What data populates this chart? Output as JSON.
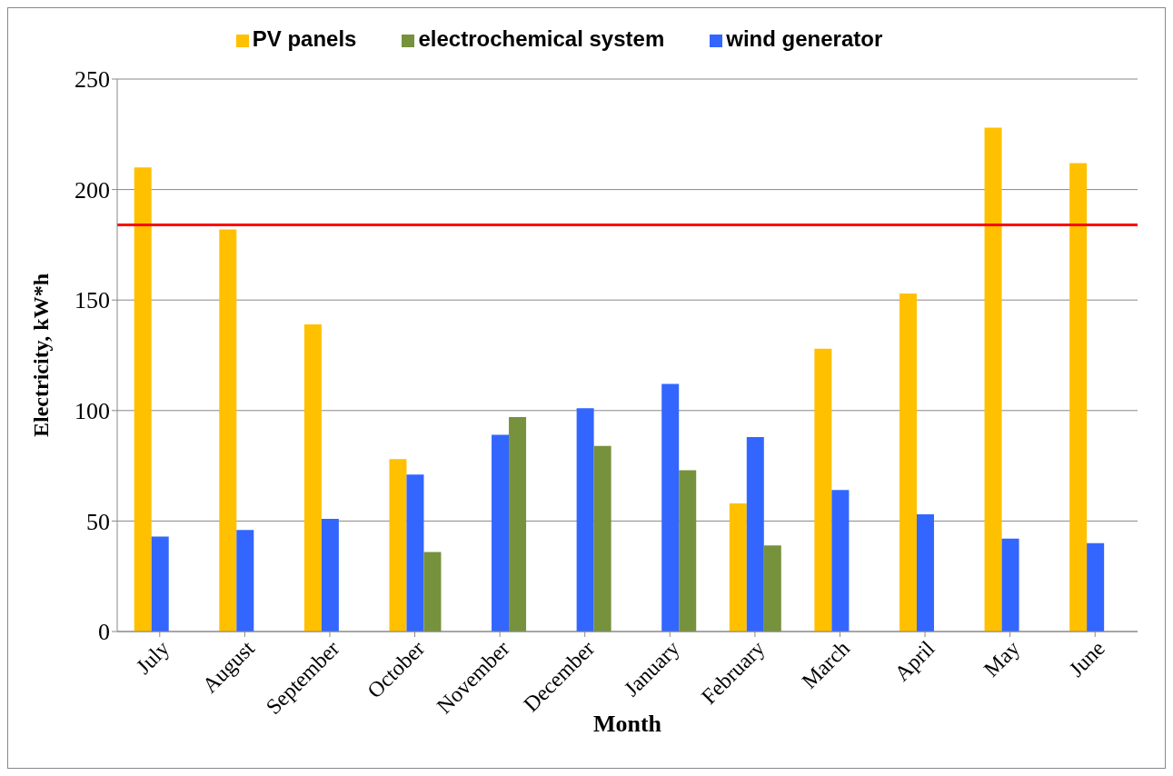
{
  "chart_data": {
    "type": "bar",
    "xlabel": "Month",
    "ylabel": "Electricity, kW*h",
    "categories": [
      "July",
      "August",
      "September",
      "October",
      "November",
      "December",
      "January",
      "February",
      "March",
      "April",
      "May",
      "June"
    ],
    "series": [
      {
        "name": "PV panels",
        "color": "#ffc000",
        "values": [
          210,
          182,
          139,
          78,
          null,
          null,
          null,
          58,
          128,
          153,
          228,
          212
        ]
      },
      {
        "name": "wind generator",
        "color": "#3366ff",
        "values": [
          43,
          46,
          51,
          71,
          89,
          101,
          112,
          88,
          64,
          53,
          42,
          40
        ]
      },
      {
        "name": "electrochemical system",
        "color": "#76923c",
        "values": [
          null,
          null,
          null,
          36,
          97,
          84,
          73,
          39,
          null,
          null,
          null,
          null
        ]
      }
    ],
    "ylim": [
      0,
      250
    ],
    "yticks": [
      0,
      50,
      100,
      150,
      200,
      250
    ],
    "grid": "y",
    "legend": "top",
    "ref_lines": [
      {
        "axis": "y",
        "value": 184,
        "color": "#ff0000",
        "line_style": "solid"
      }
    ]
  }
}
